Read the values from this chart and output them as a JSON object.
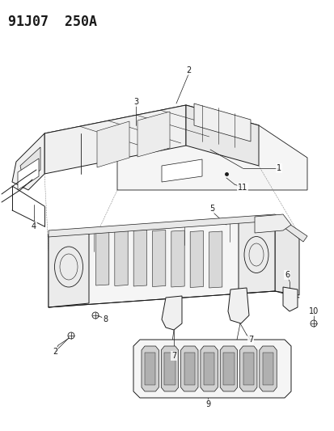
{
  "title": "91J07  250A",
  "background_color": "#ffffff",
  "figure_width": 4.14,
  "figure_height": 5.33,
  "dpi": 100,
  "line_color": "#1a1a1a",
  "label_fontsize": 7,
  "title_fontsize": 12,
  "title_fontweight": "bold"
}
